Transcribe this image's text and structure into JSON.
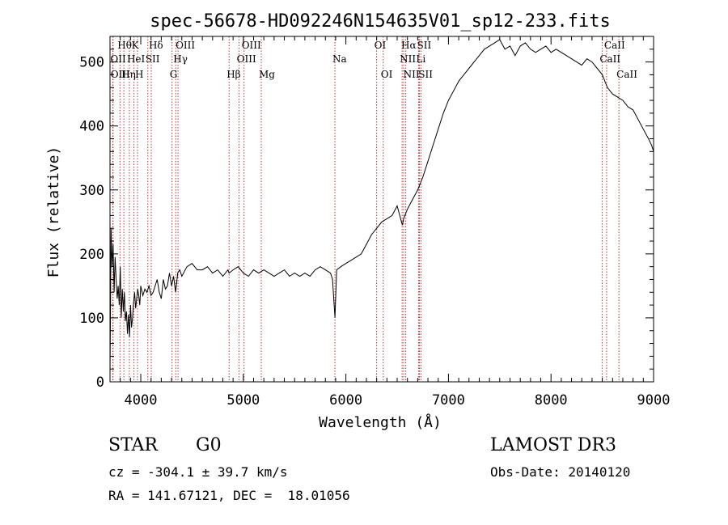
{
  "chart_data": {
    "type": "line",
    "title": "spec-56678-HD092246N154635V01_sp12-233.fits",
    "xlabel": "Wavelength (Å)",
    "ylabel": "Flux (relative)",
    "xlim": [
      3700,
      9000
    ],
    "ylim": [
      0,
      540
    ],
    "xticks": [
      4000,
      5000,
      6000,
      7000,
      8000,
      9000
    ],
    "yticks": [
      0,
      100,
      200,
      300,
      400,
      500
    ],
    "xtick_labels": [
      "4000",
      "5000",
      "6000",
      "7000",
      "8000",
      "9000"
    ],
    "ytick_labels": [
      "0",
      "100",
      "200",
      "300",
      "400",
      "500"
    ],
    "grid": false,
    "line_color": "#000000",
    "marker_color": "#b22222",
    "series": [
      {
        "x": [
          3700,
          3710,
          3720,
          3730,
          3740,
          3750,
          3760,
          3770,
          3780,
          3790,
          3800,
          3810,
          3820,
          3830,
          3840,
          3850,
          3860,
          3870,
          3880,
          3890,
          3900,
          3910,
          3920,
          3930,
          3940,
          3950,
          3960,
          3970,
          3980,
          3990,
          4000,
          4020,
          4040,
          4060,
          4080,
          4100,
          4120,
          4140,
          4160,
          4180,
          4200,
          4220,
          4240,
          4260,
          4280,
          4300,
          4320,
          4340,
          4360,
          4380,
          4400,
          4450,
          4500,
          4550,
          4600,
          4650,
          4700,
          4750,
          4800,
          4850,
          4861,
          4900,
          4950,
          5000,
          5050,
          5100,
          5150,
          5200,
          5250,
          5300,
          5350,
          5400,
          5450,
          5500,
          5550,
          5600,
          5650,
          5700,
          5750,
          5800,
          5850,
          5870,
          5893,
          5910,
          5950,
          6000,
          6050,
          6100,
          6150,
          6200,
          6250,
          6300,
          6350,
          6400,
          6450,
          6500,
          6550,
          6563,
          6600,
          6650,
          6700,
          6750,
          6800,
          6850,
          6900,
          6950,
          7000,
          7050,
          7100,
          7150,
          7200,
          7250,
          7300,
          7350,
          7400,
          7450,
          7500,
          7550,
          7600,
          7650,
          7700,
          7750,
          7800,
          7850,
          7900,
          7950,
          8000,
          8050,
          8100,
          8150,
          8200,
          8250,
          8300,
          8350,
          8400,
          8450,
          8500,
          8550,
          8600,
          8650,
          8700,
          8750,
          8800,
          8850,
          8900,
          8950,
          8980,
          9000
        ],
        "y": [
          10,
          240,
          180,
          215,
          140,
          195,
          160,
          130,
          150,
          120,
          180,
          100,
          145,
          110,
          140,
          95,
          110,
          75,
          105,
          70,
          120,
          85,
          100,
          125,
          140,
          115,
          130,
          145,
          135,
          120,
          150,
          135,
          145,
          140,
          150,
          135,
          140,
          150,
          160,
          140,
          130,
          160,
          145,
          150,
          170,
          150,
          165,
          140,
          170,
          175,
          165,
          180,
          185,
          175,
          175,
          180,
          170,
          175,
          165,
          175,
          170,
          175,
          180,
          170,
          165,
          175,
          170,
          175,
          170,
          165,
          170,
          175,
          165,
          170,
          165,
          170,
          165,
          175,
          180,
          175,
          170,
          160,
          100,
          175,
          180,
          185,
          190,
          195,
          200,
          215,
          230,
          240,
          250,
          255,
          260,
          275,
          245,
          255,
          270,
          285,
          300,
          320,
          345,
          370,
          395,
          420,
          440,
          455,
          470,
          480,
          490,
          500,
          510,
          520,
          525,
          530,
          535,
          520,
          525,
          510,
          525,
          530,
          520,
          515,
          520,
          525,
          515,
          520,
          515,
          510,
          505,
          500,
          495,
          505,
          500,
          490,
          480,
          460,
          450,
          445,
          440,
          430,
          425,
          410,
          395,
          380,
          370,
          360
        ]
      }
    ],
    "annotations": [
      {
        "label": "Hθ",
        "x": 3797,
        "row": 1
      },
      {
        "label": "OII",
        "x": 3727,
        "row": 2
      },
      {
        "label": "OIII",
        "x": 3730,
        "row": 3
      },
      {
        "label": "Hη",
        "x": 3835,
        "row": 3
      },
      {
        "label": "K",
        "x": 3934,
        "row": 1
      },
      {
        "label": "HeI",
        "x": 3889,
        "row": 2
      },
      {
        "label": "H",
        "x": 3968,
        "row": 3
      },
      {
        "label": "Hδ",
        "x": 4102,
        "row": 1
      },
      {
        "label": "SII",
        "x": 4069,
        "row": 2
      },
      {
        "label": "OIII",
        "x": 4363,
        "row": 1
      },
      {
        "label": "Hγ",
        "x": 4341,
        "row": 2
      },
      {
        "label": "G",
        "x": 4305,
        "row": 3
      },
      {
        "label": "Hβ",
        "x": 4861,
        "row": 3
      },
      {
        "label": "OIII",
        "x": 5007,
        "row": 1
      },
      {
        "label": "OIII",
        "x": 4959,
        "row": 2
      },
      {
        "label": "Mg",
        "x": 5175,
        "row": 3
      },
      {
        "label": "Na",
        "x": 5893,
        "row": 2
      },
      {
        "label": "OI",
        "x": 6300,
        "row": 1
      },
      {
        "label": "OI",
        "x": 6364,
        "row": 3
      },
      {
        "label": "Hα",
        "x": 6563,
        "row": 1
      },
      {
        "label": "NII",
        "x": 6548,
        "row": 2
      },
      {
        "label": "NII",
        "x": 6584,
        "row": 3
      },
      {
        "label": "SII",
        "x": 6717,
        "row": 1
      },
      {
        "label": "Li",
        "x": 6708,
        "row": 2
      },
      {
        "label": "SII",
        "x": 6731,
        "row": 3
      },
      {
        "label": "CaII",
        "x": 8542,
        "row": 1
      },
      {
        "label": "CaII",
        "x": 8498,
        "row": 2
      },
      {
        "label": "CaII",
        "x": 8662,
        "row": 3
      }
    ],
    "marker_lines": [
      3727,
      3730,
      3797,
      3835,
      3889,
      3934,
      3968,
      4069,
      4102,
      4305,
      4341,
      4363,
      4861,
      4959,
      5007,
      5175,
      5893,
      6300,
      6364,
      6548,
      6563,
      6584,
      6708,
      6717,
      6731,
      8498,
      8542,
      8662
    ]
  },
  "info": {
    "object_class": "STAR",
    "subclass": "G0",
    "survey": "LAMOST DR3",
    "redshift": "cz = -304.1 ± 39.7 km/s",
    "obs_date": "Obs-Date: 20140120",
    "coords": "RA = 141.67121, DEC =  18.01056"
  }
}
